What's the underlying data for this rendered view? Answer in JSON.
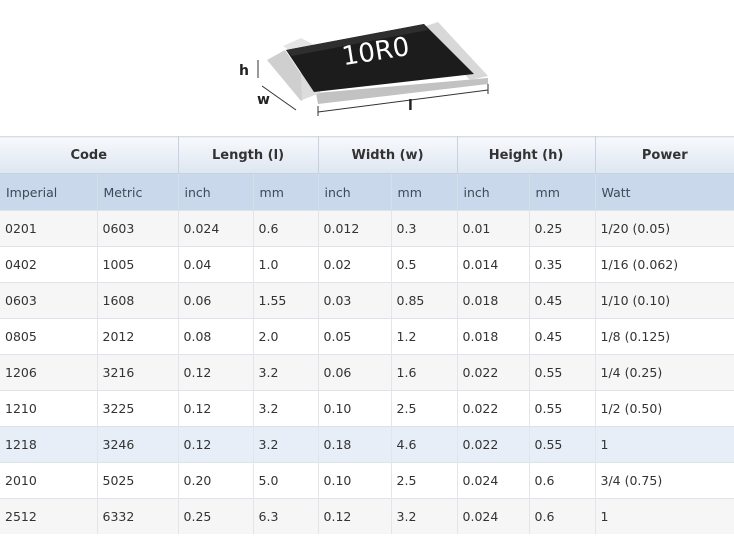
{
  "figure": {
    "marking": "10R0",
    "label_h": "h",
    "label_w": "w",
    "label_l": "l"
  },
  "table": {
    "groups": [
      "Code",
      "Length (l)",
      "Width (w)",
      "Height (h)",
      "Power"
    ],
    "subheaders": [
      "Imperial",
      "Metric",
      "inch",
      "mm",
      "inch",
      "mm",
      "inch",
      "mm",
      "Watt"
    ],
    "rows": [
      [
        "0201",
        "0603",
        "0.024",
        "0.6",
        "0.012",
        "0.3",
        "0.01",
        "0.25",
        "1/20 (0.05)"
      ],
      [
        "0402",
        "1005",
        "0.04",
        "1.0",
        "0.02",
        "0.5",
        "0.014",
        "0.35",
        "1/16 (0.062)"
      ],
      [
        "0603",
        "1608",
        "0.06",
        "1.55",
        "0.03",
        "0.85",
        "0.018",
        "0.45",
        "1/10 (0.10)"
      ],
      [
        "0805",
        "2012",
        "0.08",
        "2.0",
        "0.05",
        "1.2",
        "0.018",
        "0.45",
        "1/8 (0.125)"
      ],
      [
        "1206",
        "3216",
        "0.12",
        "3.2",
        "0.06",
        "1.6",
        "0.022",
        "0.55",
        "1/4 (0.25)"
      ],
      [
        "1210",
        "3225",
        "0.12",
        "3.2",
        "0.10",
        "2.5",
        "0.022",
        "0.55",
        "1/2 (0.50)"
      ],
      [
        "1218",
        "3246",
        "0.12",
        "3.2",
        "0.18",
        "4.6",
        "0.022",
        "0.55",
        "1"
      ],
      [
        "2010",
        "5025",
        "0.20",
        "5.0",
        "0.10",
        "2.5",
        "0.024",
        "0.6",
        "3/4 (0.75)"
      ],
      [
        "2512",
        "6332",
        "0.25",
        "6.3",
        "0.12",
        "3.2",
        "0.024",
        "0.6",
        "1"
      ]
    ],
    "highlighted_row": 6
  }
}
